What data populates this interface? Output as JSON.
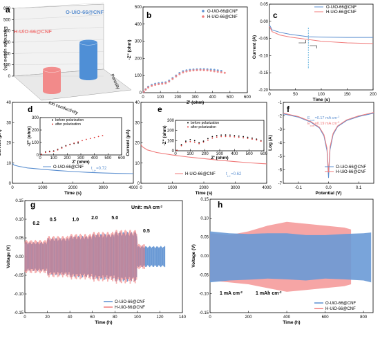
{
  "colors": {
    "o": "#5b8fd0",
    "h": "#f07a7a",
    "o_bar": "#4f8fd6",
    "h_bar": "#f28a8a",
    "o_fill": "#6a9ad6",
    "h_fill": "#f5a0a0",
    "accent_o": "#5b8fd0",
    "accent_h": "#f07a7a"
  },
  "chart_data": [
    {
      "panel": "a",
      "type": "bar",
      "categories": [
        "H-UiO-66@CNF",
        "O-UiO-66@CNF"
      ],
      "values": [
        180,
        290
      ],
      "ylabel": "Electrolyte uptake (%)",
      "yticks": [
        "0",
        "100",
        "200",
        "300",
        "400",
        "500",
        "600"
      ],
      "xlabel": "Ion conductivity",
      "zlabel": "Porosity",
      "ylim": [
        0,
        600
      ]
    },
    {
      "panel": "b",
      "type": "scatter",
      "xlabel": "Z' (ohm)",
      "ylabel": "-Z'' (ohm)",
      "xlim": [
        0,
        600
      ],
      "ylim": [
        0,
        500
      ],
      "xticks": [
        "0",
        "100",
        "200",
        "300",
        "400",
        "500",
        "600"
      ],
      "yticks": [
        "0",
        "100",
        "200",
        "300",
        "400",
        "500"
      ],
      "series": [
        {
          "name": "O-UiO-66@CNF",
          "x": [
            5,
            15,
            30,
            50,
            70,
            90,
            110,
            130,
            150,
            170,
            190,
            210,
            230,
            250,
            270,
            290,
            310,
            330,
            350,
            370,
            390,
            410,
            430,
            450
          ],
          "y": [
            5,
            20,
            35,
            45,
            52,
            55,
            58,
            60,
            70,
            85,
            100,
            115,
            125,
            130,
            133,
            135,
            136,
            137,
            137,
            136,
            135,
            133,
            130,
            127
          ]
        },
        {
          "name": "H-UiO-66@CNF",
          "x": [
            5,
            15,
            30,
            50,
            70,
            90,
            110,
            130,
            150,
            170,
            190,
            210,
            230,
            250,
            270,
            290,
            310,
            330,
            350,
            370,
            390,
            410,
            430,
            450,
            470
          ],
          "y": [
            5,
            18,
            30,
            40,
            46,
            50,
            52,
            55,
            65,
            80,
            95,
            108,
            118,
            124,
            128,
            130,
            131,
            132,
            131,
            130,
            128,
            125,
            122,
            119,
            116
          ]
        }
      ]
    },
    {
      "panel": "c",
      "type": "line",
      "xlabel": "Time (s)",
      "ylabel": "Current (A)",
      "xlim": [
        0,
        200
      ],
      "ylim": [
        -0.2,
        0.05
      ],
      "xticks": [
        "0",
        "50",
        "100",
        "150",
        "200"
      ],
      "yticks": [
        "0.05",
        "0.00",
        "-0.05",
        "-0.10",
        "-0.15",
        "-0.20"
      ],
      "annotation_x": 75,
      "series": [
        {
          "name": "O-UiO-66@CNF",
          "x": [
            0,
            5,
            20,
            40,
            60,
            75,
            100,
            150,
            200
          ],
          "y": [
            -0.01,
            -0.025,
            -0.032,
            -0.038,
            -0.042,
            -0.045,
            -0.046,
            -0.047,
            -0.047
          ]
        },
        {
          "name": "H-UiO-66@CNF",
          "x": [
            0,
            5,
            20,
            40,
            60,
            75,
            100,
            150,
            200
          ],
          "y": [
            -0.015,
            -0.03,
            -0.04,
            -0.046,
            -0.05,
            -0.053,
            -0.058,
            -0.063,
            -0.065
          ]
        }
      ]
    },
    {
      "panel": "d",
      "type": "line",
      "xlabel": "Time (s)",
      "ylabel": "Current (μA)",
      "xlim": [
        0,
        4000
      ],
      "ylim": [
        0,
        40
      ],
      "xticks": [
        "0",
        "1000",
        "2000",
        "3000",
        "4000"
      ],
      "yticks": [
        "0",
        "10",
        "20",
        "30",
        "40"
      ],
      "series": [
        {
          "name": "O-UiO-66@CNF",
          "x": [
            0,
            50,
            200,
            500,
            1000,
            1500,
            2000,
            2500,
            3000,
            3500,
            4000
          ],
          "y": [
            10,
            9,
            8.4,
            7.6,
            6.9,
            6.3,
            5.8,
            5.4,
            5.1,
            4.9,
            4.8
          ]
        }
      ],
      "t_label": "t",
      "t_sub": "Li+",
      "t_value": "=0.72",
      "inset": {
        "xlabel": "Z' (ohm)",
        "ylabel": "-Z'' (ohm)",
        "xlim": [
          0,
          600
        ],
        "ylim": [
          0,
          300
        ],
        "xticks": [
          "0",
          "100",
          "200",
          "300",
          "400",
          "500",
          "600"
        ],
        "yticks": [
          "0",
          "100",
          "200",
          "300"
        ],
        "series": [
          {
            "name": "before polarization",
            "x": [
              10,
              40,
              70,
              100,
              130,
              160,
              190,
              220,
              250,
              280
            ],
            "y": [
              5,
              25,
              30,
              32,
              45,
              60,
              75,
              85,
              92,
              96
            ]
          },
          {
            "name": "after polarization",
            "x": [
              10,
              40,
              70,
              100,
              130,
              160,
              190,
              220,
              250,
              280,
              310,
              340,
              370,
              400,
              430,
              460
            ],
            "y": [
              5,
              20,
              25,
              28,
              40,
              55,
              70,
              82,
              95,
              105,
              115,
              125,
              132,
              140,
              148,
              155
            ]
          }
        ]
      }
    },
    {
      "panel": "e",
      "type": "line",
      "xlabel": "Time (s)",
      "ylabel": "Current (μA)",
      "xlim": [
        0,
        4000
      ],
      "ylim": [
        0,
        40
      ],
      "xticks": [
        "0",
        "1000",
        "2000",
        "3000",
        "4000"
      ],
      "yticks": [
        "0",
        "10",
        "20",
        "30",
        "40"
      ],
      "series": [
        {
          "name": "H-UiO-66@CNF",
          "x": [
            0,
            50,
            200,
            500,
            1000,
            1500,
            2000,
            2500,
            3000,
            3500,
            4000
          ],
          "y": [
            19,
            18,
            16.5,
            15.2,
            14,
            13,
            12.2,
            11.4,
            10.7,
            10.1,
            9.6
          ]
        }
      ],
      "t_label": "t",
      "t_sub": "Li+",
      "t_value": "=0.62",
      "inset": {
        "xlabel": "Z' (ohm)",
        "ylabel": "-Z'' (ohm)",
        "xlim": [
          0,
          600
        ],
        "ylim": [
          0,
          300
        ],
        "xticks": [
          "0",
          "100",
          "200",
          "300",
          "400",
          "500",
          "600"
        ],
        "yticks": [
          "0",
          "100",
          "200",
          "300"
        ],
        "series": [
          {
            "name": "before polarization",
            "x": [
              10,
              40,
              70,
              100,
              130,
              160,
              190,
              220,
              250,
              280,
              310,
              340,
              370,
              400,
              430,
              460,
              490,
              520,
              550,
              580
            ],
            "y": [
              5,
              60,
              95,
              110,
              100,
              80,
              95,
              120,
              140,
              150,
              155,
              156,
              155,
              150,
              145,
              140,
              133,
              125,
              115,
              100
            ]
          },
          {
            "name": "after polarization",
            "x": [
              10,
              40,
              70,
              100,
              130,
              160,
              190,
              220,
              250,
              280,
              310,
              340,
              370,
              400,
              430,
              460,
              490,
              520,
              550,
              580
            ],
            "y": [
              5,
              50,
              80,
              90,
              85,
              70,
              85,
              105,
              125,
              135,
              140,
              141,
              140,
              137,
              133,
              128,
              122,
              115,
              107,
              95
            ]
          }
        ]
      }
    },
    {
      "panel": "f",
      "type": "line",
      "xlabel": "Potential (V)",
      "ylabel": "Log (A)",
      "xlim": [
        -0.15,
        0.15
      ],
      "ylim": [
        -7,
        -1
      ],
      "xticks": [
        "-0.1",
        "0.0",
        "0.1"
      ],
      "yticks": [
        "-1",
        "-2",
        "-3",
        "-4",
        "-5",
        "-6",
        "-7"
      ],
      "e_o": {
        "sym": "E",
        "sub": "corr",
        "value": "=0.17 mA cm",
        "sup": "-2"
      },
      "e_h": {
        "sym": "E",
        "sub": "corr",
        "value": "=0.19 mA cm",
        "sup": "-2"
      },
      "series": [
        {
          "name": "O-UiO-66@CNF",
          "x": [
            -0.15,
            -0.1,
            -0.06,
            -0.03,
            -0.015,
            -0.005,
            0,
            0.005,
            0.015,
            0.03,
            0.06,
            0.1,
            0.15
          ],
          "y": [
            -1.85,
            -2.1,
            -2.45,
            -2.9,
            -3.5,
            -4.6,
            -6.6,
            -4.5,
            -3.4,
            -2.8,
            -2.35,
            -2.05,
            -1.8
          ]
        },
        {
          "name": "H-UiO-66@CNF",
          "x": [
            -0.15,
            -0.1,
            -0.06,
            -0.03,
            -0.015,
            -0.005,
            0,
            0.005,
            0.015,
            0.03,
            0.06,
            0.1,
            0.15
          ],
          "y": [
            -1.8,
            -2.05,
            -2.4,
            -2.85,
            -3.4,
            -4.4,
            -6.2,
            -4.3,
            -3.3,
            -2.75,
            -2.3,
            -2.0,
            -1.75
          ]
        }
      ]
    },
    {
      "panel": "g",
      "type": "line",
      "xlabel": "Time (h)",
      "ylabel": "Voltage (V)",
      "xlim": [
        0,
        140
      ],
      "ylim": [
        -0.15,
        0.15
      ],
      "xticks": [
        "0",
        "20",
        "40",
        "60",
        "80",
        "100",
        "120",
        "140"
      ],
      "yticks": [
        "0.15",
        "0.10",
        "0.05",
        "0.00",
        "-0.05",
        "-0.10",
        "-0.15"
      ],
      "unit_prefix": "Unit: mA cm",
      "unit_sup": "-2",
      "rate_labels": [
        {
          "text": "0.2",
          "x": 10,
          "y": 0.065
        },
        {
          "text": "0.5",
          "x": 25,
          "y": 0.075
        },
        {
          "text": "1.0",
          "x": 45,
          "y": 0.075
        },
        {
          "text": "2.0",
          "x": 62,
          "y": 0.08
        },
        {
          "text": "5.0",
          "x": 80,
          "y": 0.08
        },
        {
          "text": "0.5",
          "x": 108,
          "y": 0.045
        }
      ],
      "segments_amplitude_o": [
        {
          "x0": 0,
          "x1": 20,
          "amp": 0.035
        },
        {
          "x0": 20,
          "x1": 40,
          "amp": 0.045
        },
        {
          "x0": 40,
          "x1": 60,
          "amp": 0.05
        },
        {
          "x0": 60,
          "x1": 80,
          "amp": 0.055
        },
        {
          "x0": 80,
          "x1": 100,
          "amp": 0.06
        },
        {
          "x0": 100,
          "x1": 125,
          "amp": 0.025
        }
      ],
      "segments_amplitude_h": [
        {
          "x0": 0,
          "x1": 20,
          "amp": 0.04
        },
        {
          "x0": 20,
          "x1": 40,
          "amp": 0.05
        },
        {
          "x0": 40,
          "x1": 60,
          "amp": 0.055
        },
        {
          "x0": 60,
          "x1": 80,
          "amp": 0.06
        },
        {
          "x0": 80,
          "x1": 100,
          "amp": 0.065
        },
        {
          "x0": 100,
          "x1": 107,
          "amp": 0.03
        }
      ],
      "series": [
        {
          "name": "O-UiO-66@CNF"
        },
        {
          "name": "H-UiO-66@CNF"
        }
      ]
    },
    {
      "panel": "h",
      "type": "area",
      "xlabel": "Time (h)",
      "ylabel": "Voltage (V)",
      "xlim": [
        0,
        850
      ],
      "ylim": [
        -0.15,
        0.15
      ],
      "xticks": [
        "0",
        "200",
        "400",
        "600",
        "800"
      ],
      "yticks": [
        "0.15",
        "0.10",
        "0.05",
        "0.00",
        "-0.05",
        "-0.10",
        "-0.15"
      ],
      "condition_current": "1 mA cm",
      "condition_current_sup": "-2",
      "condition_capacity": "1 mAh cm",
      "condition_capacity_sup": "-2",
      "envelope_o": {
        "x": [
          0,
          100,
          200,
          300,
          400,
          500,
          600,
          700,
          800,
          840
        ],
        "upper": [
          0.065,
          0.06,
          0.058,
          0.06,
          0.06,
          0.055,
          0.055,
          0.058,
          0.06,
          0.062
        ],
        "lower": [
          -0.07,
          -0.065,
          -0.063,
          -0.06,
          -0.062,
          -0.065,
          -0.06,
          -0.062,
          -0.065,
          -0.07
        ]
      },
      "envelope_h": {
        "x": [
          0,
          100,
          200,
          300,
          400,
          500,
          600,
          700,
          735
        ],
        "upper": [
          0.06,
          0.055,
          0.065,
          0.08,
          0.09,
          0.085,
          0.08,
          0.075,
          0.07
        ],
        "lower": [
          -0.065,
          -0.07,
          -0.075,
          -0.085,
          -0.095,
          -0.09,
          -0.085,
          -0.08,
          -0.075
        ]
      },
      "series": [
        {
          "name": "O-UiO-66@CNF"
        },
        {
          "name": "H-UiO-66@CNF"
        }
      ]
    }
  ],
  "panel_letters": {
    "a": "a",
    "b": "b",
    "c": "c",
    "d": "d",
    "e": "e",
    "f": "f",
    "g": "g",
    "h": "h"
  }
}
